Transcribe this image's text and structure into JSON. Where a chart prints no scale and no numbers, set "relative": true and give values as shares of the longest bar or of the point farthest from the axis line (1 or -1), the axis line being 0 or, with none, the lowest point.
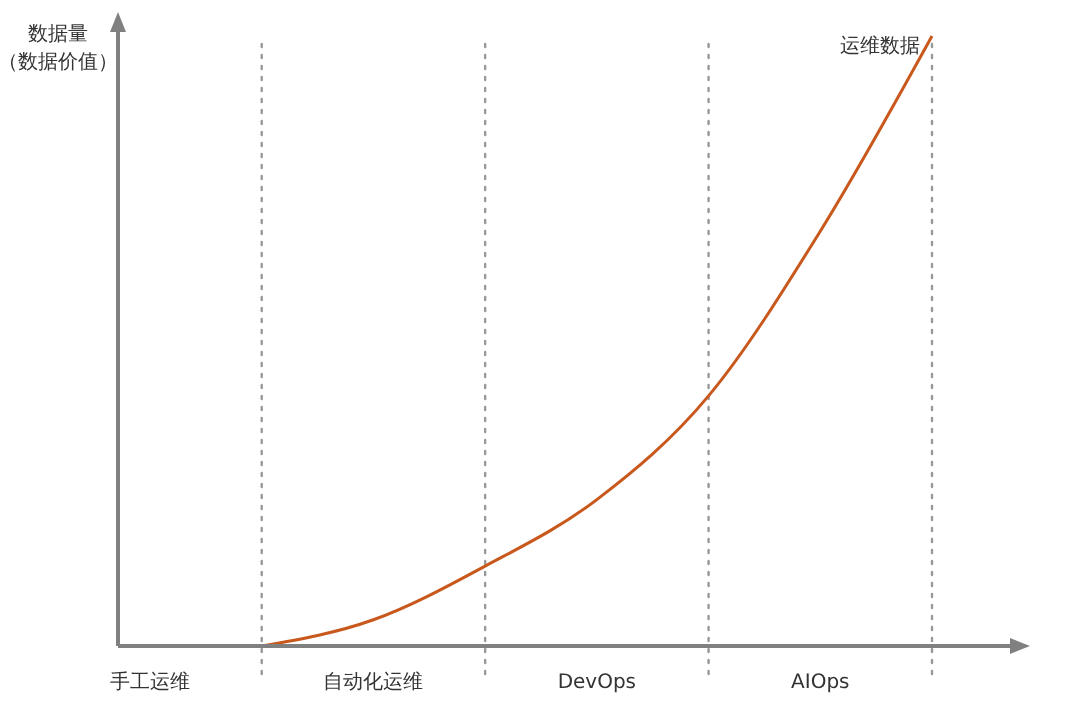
{
  "chart_data": {
    "type": "line",
    "relative": true,
    "ylabel": "数据量（数据价值）",
    "categories": [
      "手工运维",
      null,
      "自动化运维",
      null,
      "DevOps",
      null,
      "AIOps",
      null
    ],
    "series": [
      {
        "color": "#c8581c",
        "values": [
          null,
          0,
          0.043,
          0.131,
          0.24,
          0.41,
          0.68,
          1
        ]
      }
    ],
    "annotations": [
      "运维数据"
    ],
    "grid": "x",
    "marker": "none",
    "line_style": "solid"
  }
}
